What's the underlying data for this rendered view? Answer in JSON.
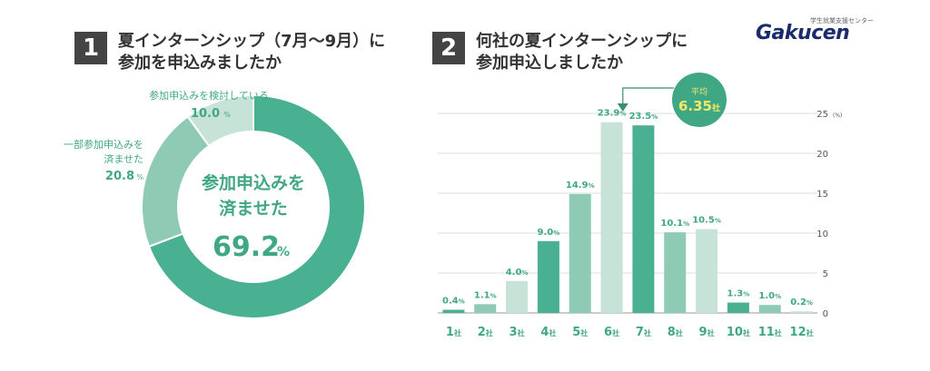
{
  "brand": {
    "logo_text": "Gakucen",
    "logo_subtext": "学生就業支援センター"
  },
  "q1": {
    "number": "1",
    "title_line1": "夏インターンシップ（7月～9月）に",
    "title_line2": "参加を申込みましたか"
  },
  "q2": {
    "number": "2",
    "title_line1": "何社の夏インターンシップに",
    "title_line2": "参加申込しましたか"
  },
  "colors": {
    "dark": "#4ab092",
    "mid": "#8fcab5",
    "light": "#c7e3d7",
    "text_green": "#3fa784"
  },
  "chart_data": [
    {
      "type": "pie",
      "slices": [
        {
          "label_line1": "参加申込みを",
          "label_line2": "済ませた",
          "value": 69.2,
          "value_text": "69.2",
          "unit": "%"
        },
        {
          "label_line1": "一部参加申込みを",
          "label_line2": "済ませた",
          "value": 20.8,
          "value_text": "20.8",
          "unit": "%"
        },
        {
          "label_line1": "参加申込みを検討している",
          "label_line2": "",
          "value": 10.0,
          "value_text": "10.0",
          "unit": "%"
        }
      ]
    },
    {
      "type": "bar",
      "categories": [
        "1社",
        "2社",
        "3社",
        "4社",
        "5社",
        "6社",
        "7社",
        "8社",
        "9社",
        "10社",
        "11社",
        "12社"
      ],
      "values": [
        0.4,
        1.1,
        4.0,
        9.0,
        14.9,
        23.9,
        23.5,
        10.1,
        10.5,
        1.3,
        1.0,
        0.2
      ],
      "value_labels": [
        "0.4%",
        "1.1%",
        "4.0%",
        "9.0%",
        "14.9%",
        "23.9%",
        "23.5%",
        "10.1%",
        "10.5%",
        "1.3%",
        "1.0%",
        "0.2%"
      ],
      "shades": [
        "dark",
        "mid",
        "light",
        "dark",
        "mid",
        "light",
        "dark",
        "mid",
        "light",
        "dark",
        "mid",
        "light"
      ],
      "ylim": [
        0,
        25
      ],
      "yticks": [
        "0",
        "5",
        "10",
        "15",
        "20",
        "25"
      ],
      "yunit": "(%)",
      "grid": true,
      "average": {
        "label": "平均",
        "value_text": "6.35社",
        "value": 6.35
      }
    }
  ]
}
